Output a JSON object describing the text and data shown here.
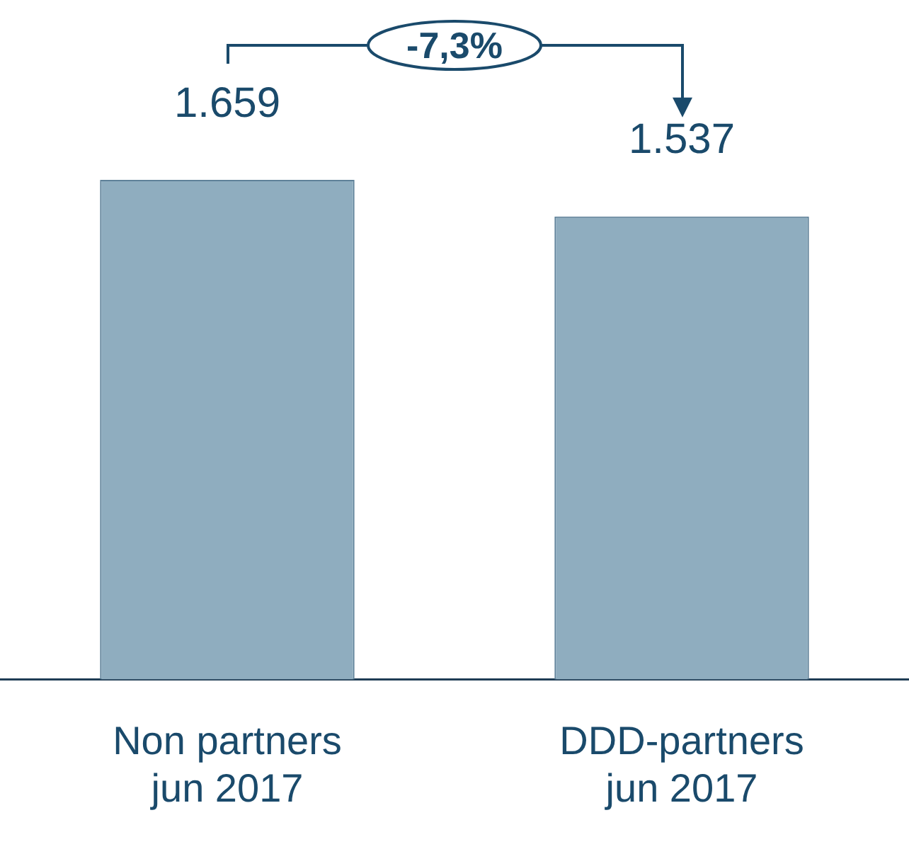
{
  "chart_data": {
    "type": "bar",
    "categories": [
      "Non partners jun 2017",
      "DDD-partners jun 2017"
    ],
    "values": [
      1659,
      1537
    ],
    "value_labels": [
      "1.659",
      "1.537"
    ],
    "color": "#8fadbf",
    "annotations": [
      "-7,3%"
    ]
  }
}
